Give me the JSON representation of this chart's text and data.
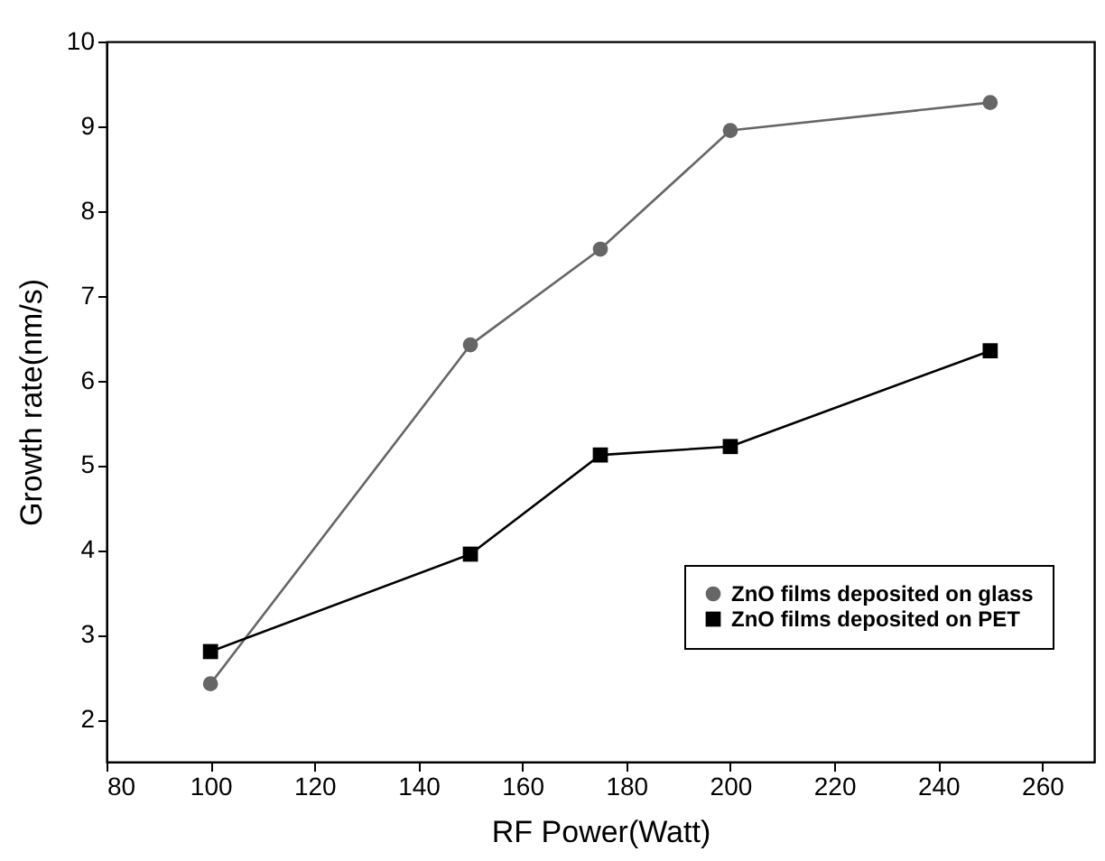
{
  "chart_data": {
    "type": "line",
    "xlabel": "RF Power(Watt)",
    "ylabel": "Growth rate(nm/s)",
    "x": [
      100,
      150,
      175,
      200,
      250
    ],
    "series": [
      {
        "name": "ZnO films deposited on glass",
        "color": "#666666",
        "marker": "circle",
        "values": [
          2.42,
          6.42,
          7.55,
          8.95,
          9.28
        ]
      },
      {
        "name": "ZnO films deposited on PET",
        "color": "#000000",
        "marker": "square",
        "values": [
          2.8,
          3.95,
          5.12,
          5.22,
          6.35
        ]
      }
    ],
    "xlim": [
      80,
      270
    ],
    "xticks": [
      80,
      100,
      120,
      140,
      160,
      180,
      200,
      220,
      240,
      260
    ],
    "ylim": [
      1.5,
      10
    ],
    "yticks": [
      2,
      3,
      4,
      5,
      6,
      7,
      8,
      9,
      10
    ],
    "legend": "bottom right",
    "grid": false,
    "line_style": "solid"
  }
}
